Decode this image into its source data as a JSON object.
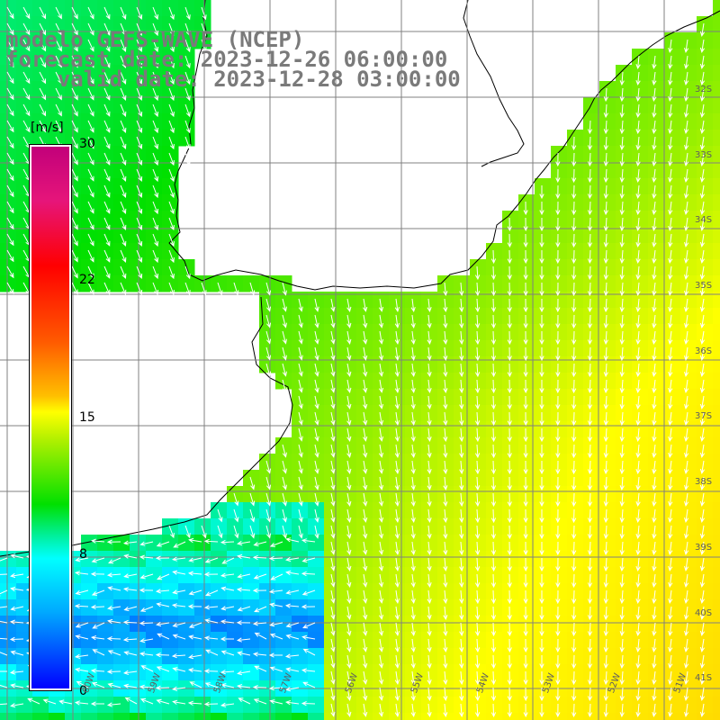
{
  "title": {
    "line1": "modelo GEFS-WAVE (NCEP)",
    "line2": "forecast date: 2023-12-26 06:00:00",
    "line3": "    valid date: 2023-12-28 03:00:00"
  },
  "colorbar": {
    "unit": "[m/s]",
    "ticks": [
      "30",
      "22",
      "15",
      "8",
      "0"
    ],
    "min": 0,
    "max": 30
  },
  "lat_labels": [
    "32S",
    "33S",
    "34S",
    "35S",
    "36S",
    "37S",
    "38S",
    "39S",
    "40S",
    "41S"
  ],
  "lon_labels": [
    "60W",
    "59W",
    "58W",
    "57W",
    "56W",
    "55W",
    "54W",
    "53W",
    "52W",
    "51W"
  ],
  "colors": {
    "land": "#ffffff",
    "coast": "#000000",
    "grid": "#808080",
    "arrow": "#ffffff"
  }
}
